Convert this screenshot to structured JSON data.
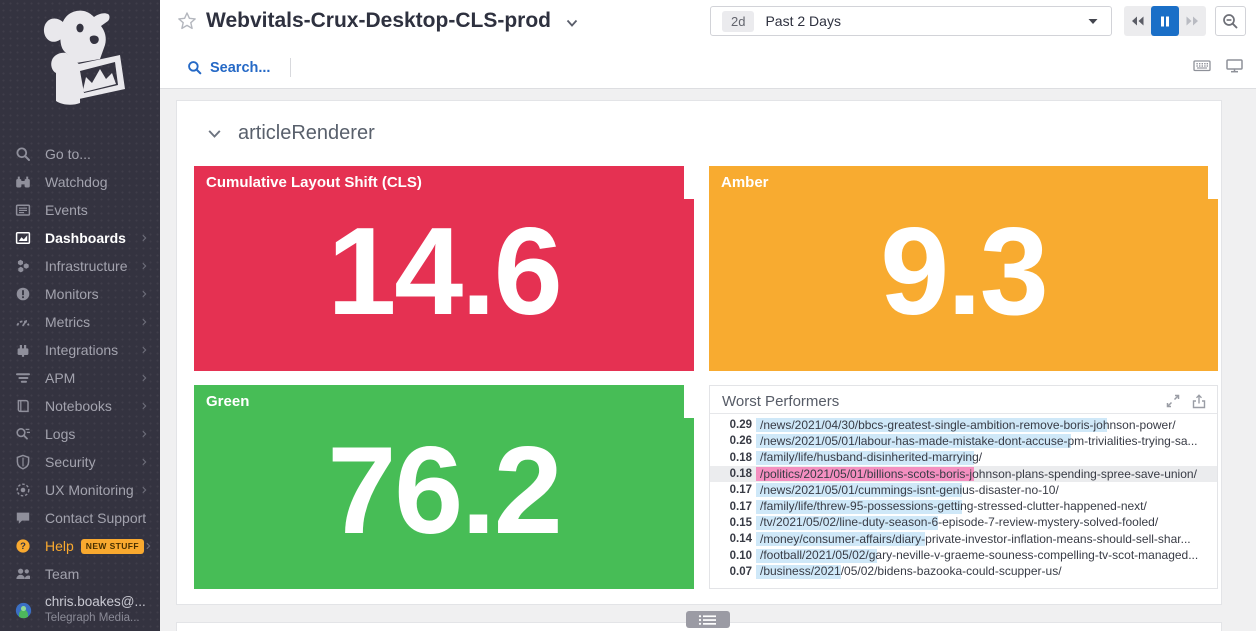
{
  "app": {
    "name": "Datadog",
    "logo_icon": "datadog-bits-dog-icon"
  },
  "sidebar": {
    "items": [
      {
        "id": "goto",
        "icon": "search-icon",
        "label": "Go to..."
      },
      {
        "id": "watchdog",
        "icon": "binoculars-icon",
        "label": "Watchdog"
      },
      {
        "id": "events",
        "icon": "events-icon",
        "label": "Events"
      },
      {
        "id": "dashboards",
        "icon": "dashboards-icon",
        "label": "Dashboards",
        "active": true,
        "arrow": true
      },
      {
        "id": "infrastructure",
        "icon": "infrastructure-icon",
        "label": "Infrastructure",
        "arrow": true
      },
      {
        "id": "monitors",
        "icon": "monitors-icon",
        "label": "Monitors",
        "arrow": true
      },
      {
        "id": "metrics",
        "icon": "metrics-icon",
        "label": "Metrics",
        "arrow": true
      },
      {
        "id": "integrations",
        "icon": "integrations-icon",
        "label": "Integrations",
        "arrow": true
      },
      {
        "id": "apm",
        "icon": "apm-icon",
        "label": "APM",
        "arrow": true
      },
      {
        "id": "notebooks",
        "icon": "notebooks-icon",
        "label": "Notebooks",
        "arrow": true
      },
      {
        "id": "logs",
        "icon": "logs-icon",
        "label": "Logs",
        "arrow": true
      },
      {
        "id": "security",
        "icon": "security-icon",
        "label": "Security",
        "arrow": true
      },
      {
        "id": "ux-monitoring",
        "icon": "ux-monitoring-icon",
        "label": "UX Monitoring",
        "arrow": true
      },
      {
        "id": "contact-support",
        "icon": "chat-icon",
        "label": "Contact Support"
      },
      {
        "id": "help",
        "icon": "help-icon",
        "label": "Help",
        "badge": "NEW STUFF",
        "highlight": true,
        "arrow": true
      },
      {
        "id": "team",
        "icon": "team-icon",
        "label": "Team"
      },
      {
        "id": "user",
        "icon": "avatar",
        "label": "chris.boakes@...",
        "sublabel": "Telegraph Media..."
      }
    ]
  },
  "header": {
    "title": "Webvitals-Crux-Desktop-CLS-prod",
    "search_label": "Search...",
    "time_range": {
      "badge": "2d",
      "label": "Past 2 Days"
    }
  },
  "section": {
    "title": "articleRenderer"
  },
  "colors": {
    "red": "#e53152",
    "amber": "#f8ab30",
    "green": "#47bd56",
    "bar_blue": "#cfe8f8",
    "bar_pink": "#f48fc0",
    "accent_blue": "#1a6fc7",
    "sidebar_orange": "#f9a92f"
  },
  "widgets": {
    "cls": {
      "title": "Cumulative Layout Shift (CLS)",
      "value": "14.6",
      "color": "#e53152"
    },
    "amber": {
      "title": "Amber",
      "value": "9.3",
      "color": "#f8ab30"
    },
    "green": {
      "title": "Green",
      "value": "76.2",
      "color": "#47bd56"
    },
    "worst": {
      "title": "Worst Performers",
      "rows": [
        {
          "value": "0.29",
          "url": "/news/2021/04/30/bbcs-greatest-single-ambition-remove-boris-johnson-power/"
        },
        {
          "value": "0.26",
          "url": "/news/2021/05/01/labour-has-made-mistake-dont-accuse-pm-trivialities-trying-sa..."
        },
        {
          "value": "0.18",
          "url": "/family/life/husband-disinherited-marrying/"
        },
        {
          "value": "0.18",
          "url": "/politics/2021/05/01/billions-scots-boris-johnson-plans-spending-spree-save-union/",
          "highlight": true
        },
        {
          "value": "0.17",
          "url": "/news/2021/05/01/cummings-isnt-genius-disaster-no-10/"
        },
        {
          "value": "0.17",
          "url": "/family/life/threw-95-possessions-getting-stressed-clutter-happened-next/"
        },
        {
          "value": "0.15",
          "url": "/tv/2021/05/02/line-duty-season-6-episode-7-review-mystery-solved-fooled/"
        },
        {
          "value": "0.14",
          "url": "/money/consumer-affairs/diary-private-investor-inflation-means-should-sell-shar..."
        },
        {
          "value": "0.10",
          "url": "/football/2021/05/02/gary-neville-v-graeme-souness-compelling-tv-scot-managed..."
        },
        {
          "value": "0.07",
          "url": "/business/2021/05/02/bidens-bazooka-could-scupper-us/"
        }
      ]
    }
  },
  "chart_data": {
    "type": "bar",
    "title": "Worst Performers",
    "orientation": "horizontal",
    "categories": [
      "/news/2021/04/30/bbcs-greatest-single-ambition-remove-boris-johnson-power/",
      "/news/2021/05/01/labour-has-made-mistake-dont-accuse-pm-trivialities-trying-sa...",
      "/family/life/husband-disinherited-marrying/",
      "/politics/2021/05/01/billions-scots-boris-johnson-plans-spending-spree-save-union/",
      "/news/2021/05/01/cummings-isnt-genius-disaster-no-10/",
      "/family/life/threw-95-possessions-getting-stressed-clutter-happened-next/",
      "/tv/2021/05/02/line-duty-season-6-episode-7-review-mystery-solved-fooled/",
      "/money/consumer-affairs/diary-private-investor-inflation-means-should-sell-shar...",
      "/football/2021/05/02/gary-neville-v-graeme-souness-compelling-tv-scot-managed...",
      "/business/2021/05/02/bidens-bazooka-could-scupper-us/"
    ],
    "values": [
      0.29,
      0.26,
      0.18,
      0.18,
      0.17,
      0.17,
      0.15,
      0.14,
      0.1,
      0.07
    ],
    "xlim": [
      0,
      0.37
    ]
  }
}
